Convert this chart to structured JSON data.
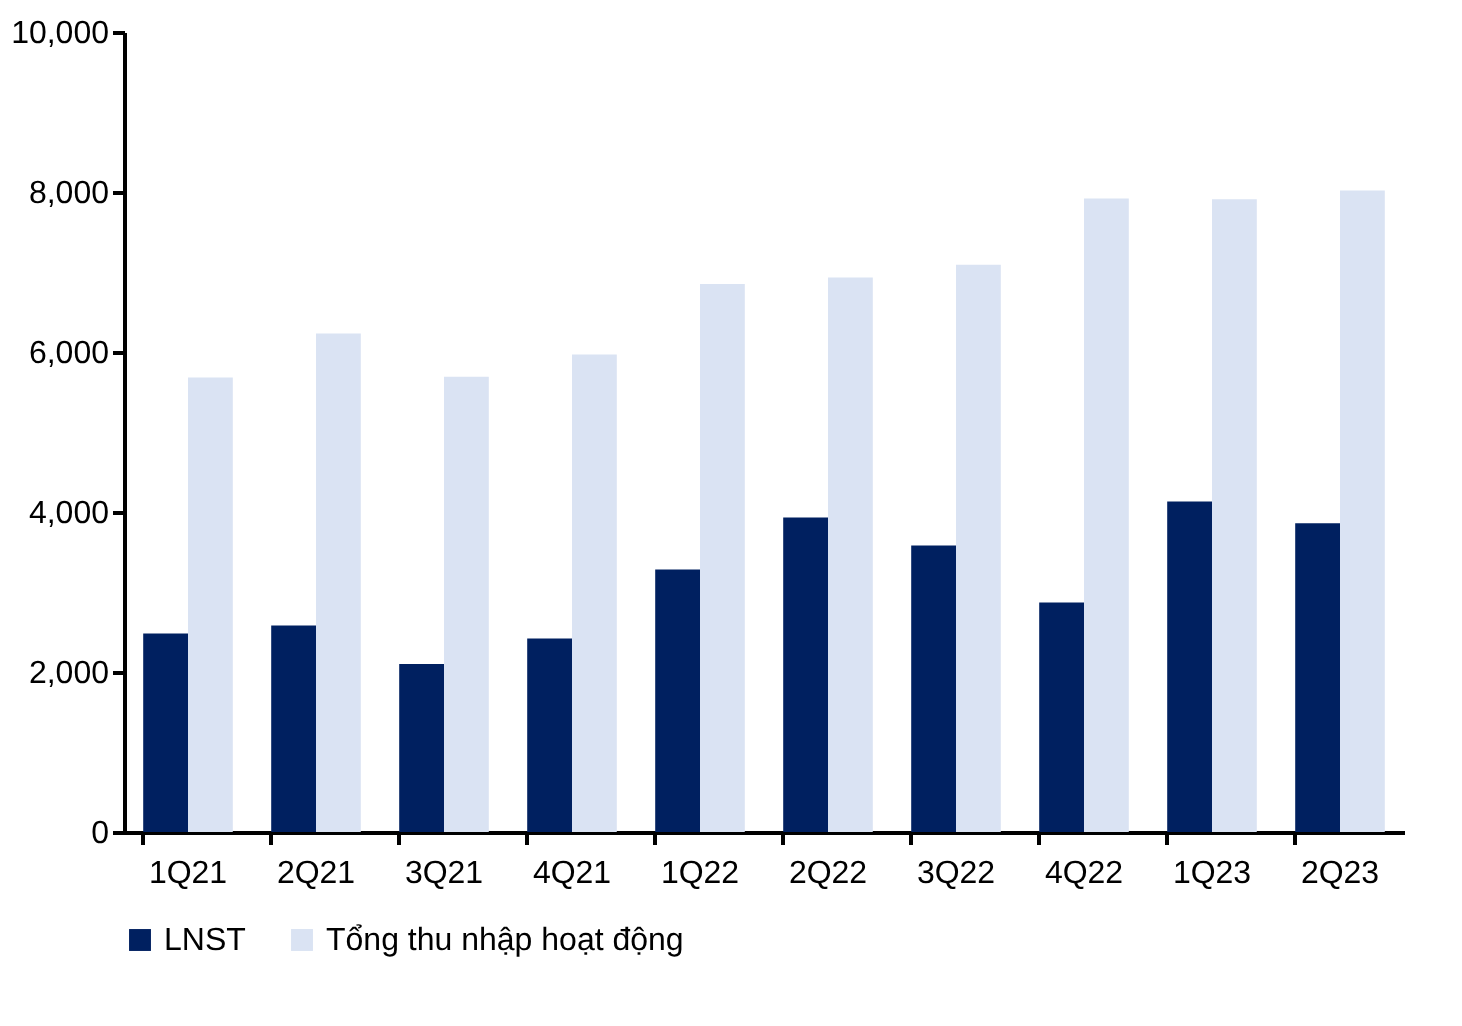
{
  "chart_data": {
    "type": "bar",
    "categories": [
      "1Q21",
      "2Q21",
      "3Q21",
      "4Q21",
      "1Q22",
      "2Q22",
      "3Q22",
      "4Q22",
      "1Q23",
      "2Q23"
    ],
    "series": [
      {
        "name": "LNST",
        "color": "#002060",
        "values": [
          2480,
          2580,
          2100,
          2420,
          3280,
          3930,
          3580,
          2870,
          4130,
          3860
        ]
      },
      {
        "name": "Tổng thu nhập hoạt động",
        "color": "#dae3f3",
        "values": [
          5680,
          6230,
          5690,
          5970,
          6850,
          6930,
          7090,
          7920,
          7910,
          8020
        ]
      }
    ],
    "ylim": [
      0,
      10000
    ],
    "yticks": [
      0,
      {
        "value": 2000,
        "label": "2,000"
      },
      {
        "value": 4000,
        "label": "4,000"
      },
      {
        "value": 6000,
        "label": "6,000"
      },
      {
        "value": 8000,
        "label": "8,000"
      },
      {
        "value": 10000,
        "label": "10,000"
      }
    ],
    "grid": false,
    "legend": "bottom"
  }
}
